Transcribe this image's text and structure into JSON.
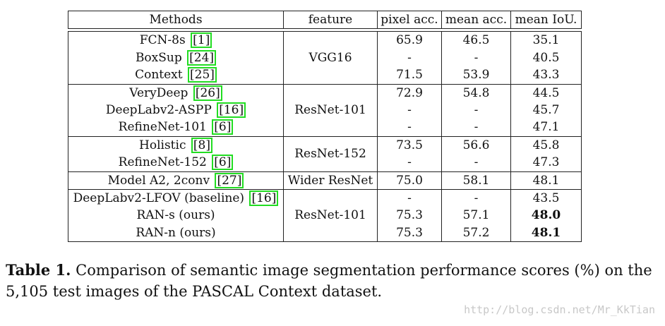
{
  "table": {
    "headers": [
      "Methods",
      "feature",
      "pixel acc.",
      "mean acc.",
      "mean IoU."
    ],
    "groups": [
      {
        "feature": "VGG16",
        "rows": [
          {
            "method": "FCN-8s",
            "cite": "1",
            "pixel": "65.9",
            "mean_acc": "46.5",
            "miou": "35.1",
            "bold": false
          },
          {
            "method": "BoxSup",
            "cite": "24",
            "pixel": "-",
            "mean_acc": "-",
            "miou": "40.5",
            "bold": false
          },
          {
            "method": "Context",
            "cite": "25",
            "pixel": "71.5",
            "mean_acc": "53.9",
            "miou": "43.3",
            "bold": false
          }
        ]
      },
      {
        "feature": "ResNet-101",
        "rows": [
          {
            "method": "VeryDeep",
            "cite": "26",
            "pixel": "72.9",
            "mean_acc": "54.8",
            "miou": "44.5",
            "bold": false
          },
          {
            "method": "DeepLabv2-ASPP",
            "cite": "16",
            "pixel": "-",
            "mean_acc": "-",
            "miou": "45.7",
            "bold": false
          },
          {
            "method": "RefineNet-101",
            "cite": "6",
            "pixel": "-",
            "mean_acc": "-",
            "miou": "47.1",
            "bold": false
          }
        ]
      },
      {
        "feature": "ResNet-152",
        "rows": [
          {
            "method": "Holistic",
            "cite": "8",
            "pixel": "73.5",
            "mean_acc": "56.6",
            "miou": "45.8",
            "bold": false
          },
          {
            "method": "RefineNet-152",
            "cite": "6",
            "pixel": "-",
            "mean_acc": "-",
            "miou": "47.3",
            "bold": false
          }
        ]
      },
      {
        "feature": "Wider ResNet",
        "rows": [
          {
            "method": "Model A2, 2conv",
            "cite": "27",
            "pixel": "75.0",
            "mean_acc": "58.1",
            "miou": "48.1",
            "bold": false
          }
        ]
      },
      {
        "feature": "ResNet-101",
        "rows": [
          {
            "method": "DeepLabv2-LFOV (baseline)",
            "cite": "16",
            "pixel": "-",
            "mean_acc": "-",
            "miou": "43.5",
            "bold": false
          },
          {
            "method": "RAN-s (ours)",
            "cite": "",
            "pixel": "75.3",
            "mean_acc": "57.1",
            "miou": "48.0",
            "bold": true
          },
          {
            "method": "RAN-n (ours)",
            "cite": "",
            "pixel": "75.3",
            "mean_acc": "57.2",
            "miou": "48.1",
            "bold": true
          }
        ]
      }
    ]
  },
  "caption": {
    "label": "Table 1.",
    "text": "Comparison of semantic image segmentation performance scores (%) on the 5,105 test images of the PASCAL Context dataset."
  },
  "watermark": "http://blog.csdn.net/Mr_KkTian"
}
